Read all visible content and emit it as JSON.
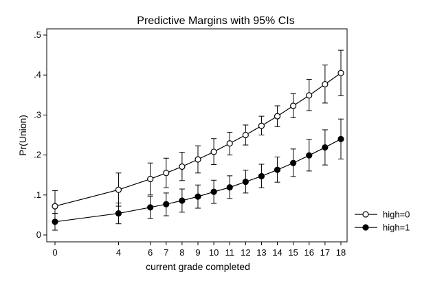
{
  "chart_data": {
    "type": "line",
    "title": "Predictive Margins with 95% CIs",
    "xlabel": "current grade completed",
    "ylabel": "Pr(Union)",
    "x": [
      0,
      4,
      6,
      7,
      8,
      9,
      10,
      11,
      12,
      13,
      14,
      15,
      16,
      17,
      18
    ],
    "x_tick_labels": [
      "0",
      "4",
      "6",
      "7",
      "8",
      "9",
      "10",
      "11",
      "12",
      "13",
      "14",
      "15",
      "16",
      "17",
      "18"
    ],
    "y_ticks": [
      0,
      0.1,
      0.2,
      0.3,
      0.4,
      0.5
    ],
    "y_tick_labels": [
      "0",
      ".1",
      ".2",
      ".3",
      ".4",
      ".5"
    ],
    "xlim": [
      0,
      18
    ],
    "ylim": [
      0,
      0.5
    ],
    "grid": false,
    "legend_position": "right",
    "series": [
      {
        "name": "high=0",
        "marker": "hollow-circle",
        "color": "#000000",
        "values": [
          0.072,
          0.113,
          0.14,
          0.155,
          0.171,
          0.189,
          0.208,
          0.229,
          0.25,
          0.273,
          0.297,
          0.323,
          0.349,
          0.377,
          0.405
        ],
        "ci_low": [
          0.033,
          0.072,
          0.1,
          0.118,
          0.136,
          0.155,
          0.176,
          0.2,
          0.225,
          0.25,
          0.271,
          0.293,
          0.311,
          0.33,
          0.348
        ],
        "ci_high": [
          0.111,
          0.155,
          0.18,
          0.192,
          0.207,
          0.223,
          0.241,
          0.257,
          0.275,
          0.297,
          0.323,
          0.353,
          0.389,
          0.425,
          0.462
        ]
      },
      {
        "name": "high=1",
        "marker": "filled-circle",
        "color": "#000000",
        "values": [
          0.033,
          0.054,
          0.069,
          0.077,
          0.086,
          0.096,
          0.108,
          0.119,
          0.133,
          0.147,
          0.163,
          0.18,
          0.199,
          0.219,
          0.24
        ],
        "ci_low": [
          0.012,
          0.028,
          0.041,
          0.048,
          0.057,
          0.067,
          0.079,
          0.091,
          0.105,
          0.118,
          0.132,
          0.146,
          0.16,
          0.175,
          0.19
        ],
        "ci_high": [
          0.054,
          0.08,
          0.097,
          0.105,
          0.115,
          0.125,
          0.137,
          0.148,
          0.162,
          0.177,
          0.195,
          0.215,
          0.239,
          0.263,
          0.29
        ]
      }
    ]
  }
}
